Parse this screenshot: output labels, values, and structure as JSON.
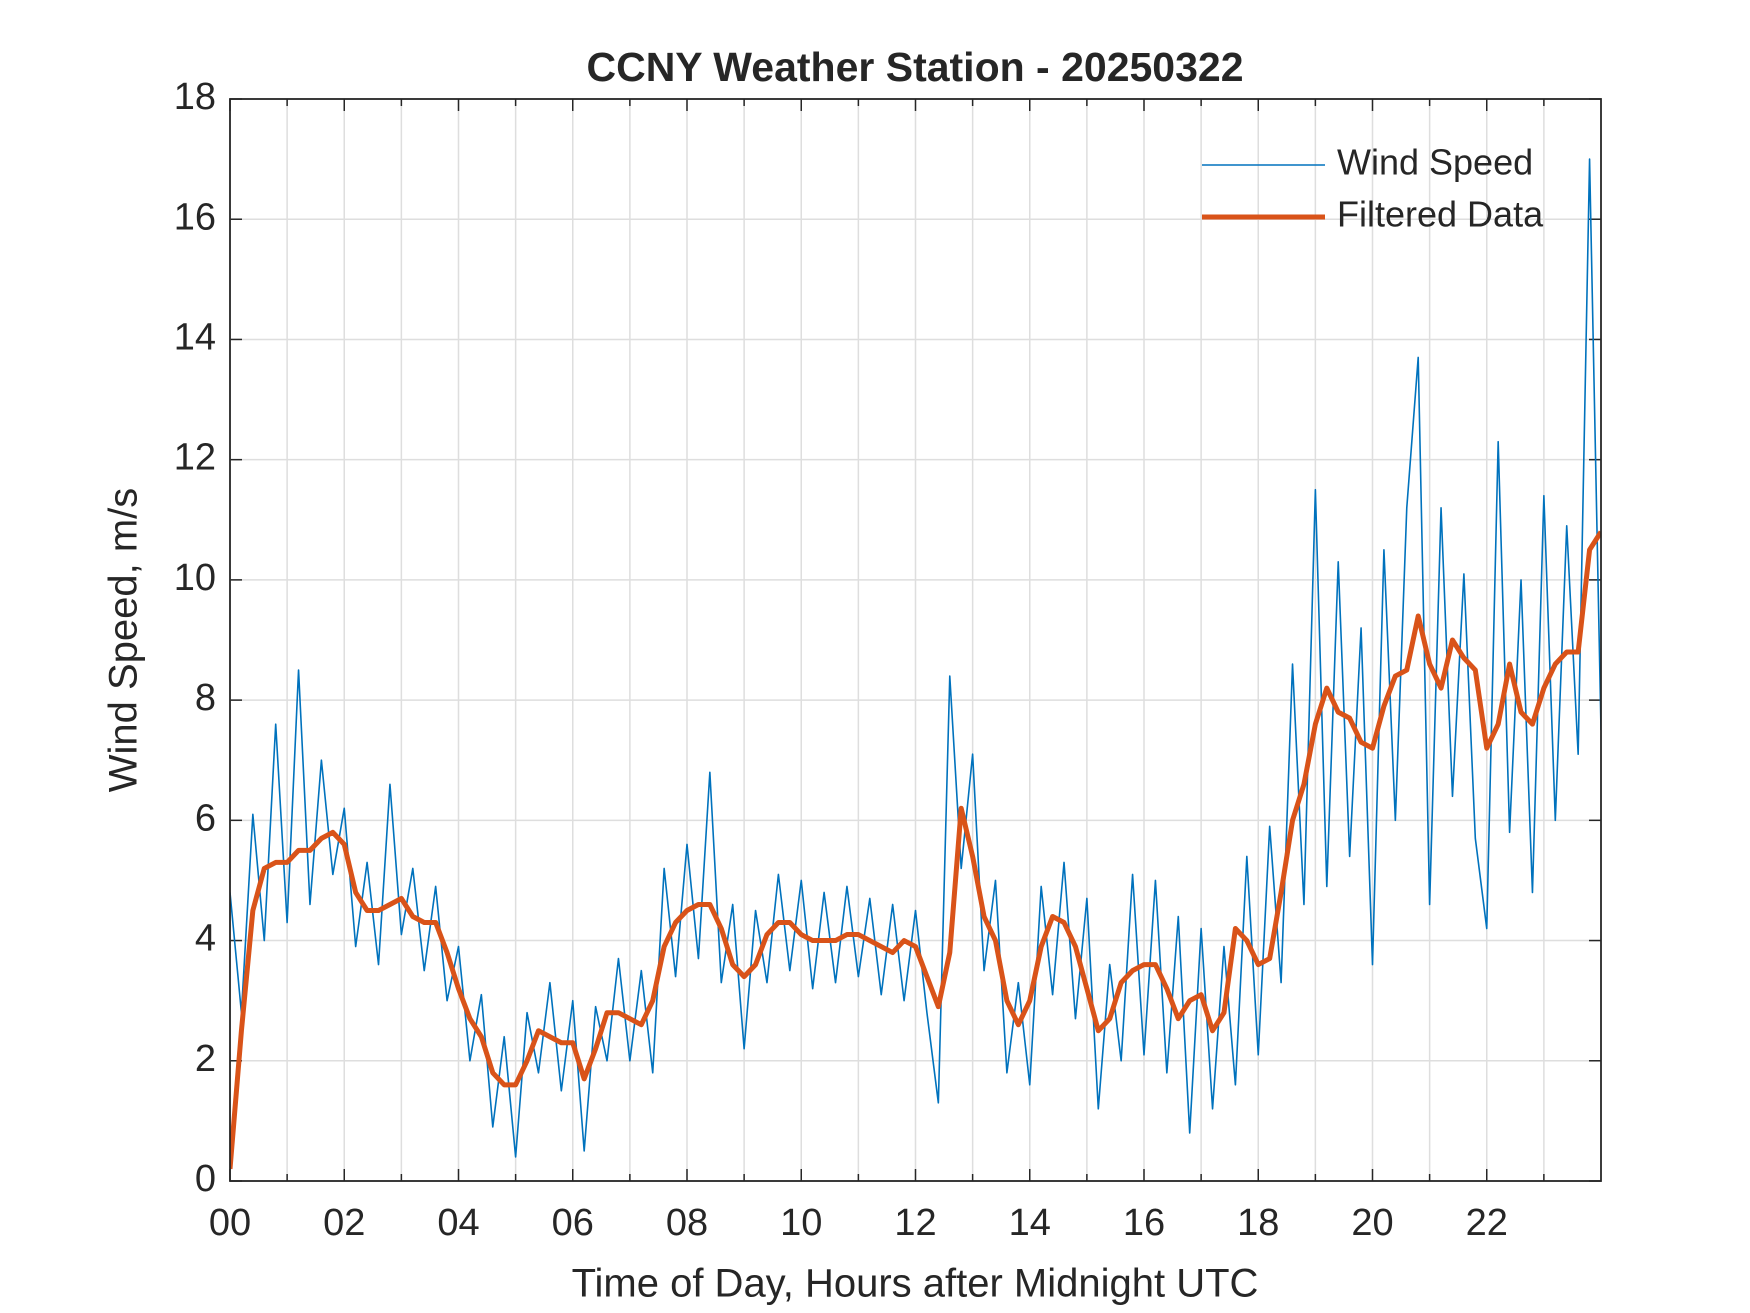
{
  "chart_data": {
    "type": "line",
    "title": "CCNY Weather Station - 20250322",
    "x_label": "Time of Day, Hours after Midnight UTC",
    "y_label": "Wind Speed, m/s",
    "x": [
      0,
      0.2,
      0.4,
      0.6,
      0.8,
      1,
      1.2,
      1.4,
      1.6,
      1.8,
      2,
      2.2,
      2.4,
      2.6,
      2.8,
      3,
      3.2,
      3.4,
      3.6,
      3.8,
      4,
      4.2,
      4.4,
      4.6,
      4.8,
      5,
      5.2,
      5.4,
      5.6,
      5.8,
      6,
      6.2,
      6.4,
      6.6,
      6.8,
      7,
      7.2,
      7.4,
      7.6,
      7.8,
      8,
      8.2,
      8.4,
      8.6,
      8.8,
      9,
      9.2,
      9.4,
      9.6,
      9.8,
      10,
      10.2,
      10.4,
      10.6,
      10.8,
      11,
      11.2,
      11.4,
      11.6,
      11.8,
      12,
      12.2,
      12.4,
      12.6,
      12.8,
      13,
      13.2,
      13.4,
      13.6,
      13.8,
      14,
      14.2,
      14.4,
      14.6,
      14.8,
      15,
      15.2,
      15.4,
      15.6,
      15.8,
      16,
      16.2,
      16.4,
      16.6,
      16.8,
      17,
      17.2,
      17.4,
      17.6,
      17.8,
      18,
      18.2,
      18.4,
      18.6,
      18.8,
      19,
      19.2,
      19.4,
      19.6,
      19.8,
      20,
      20.2,
      20.4,
      20.6,
      20.8,
      21,
      21.2,
      21.4,
      21.6,
      21.8,
      22,
      22.2,
      22.4,
      22.6,
      22.8,
      23,
      23.2,
      23.4,
      23.6,
      23.8,
      24
    ],
    "series": [
      {
        "name": "Wind Speed",
        "color": "#0072BD",
        "width": 1.6,
        "values": [
          4.8,
          2.8,
          6.1,
          4.0,
          7.6,
          4.3,
          8.5,
          4.6,
          7.0,
          5.1,
          6.2,
          3.9,
          5.3,
          3.6,
          6.6,
          4.1,
          5.2,
          3.5,
          4.9,
          3.0,
          3.9,
          2.0,
          3.1,
          0.9,
          2.4,
          0.4,
          2.8,
          1.8,
          3.3,
          1.5,
          3.0,
          0.5,
          2.9,
          2.0,
          3.7,
          2.0,
          3.5,
          1.8,
          5.2,
          3.4,
          5.6,
          3.7,
          6.8,
          3.3,
          4.6,
          2.2,
          4.5,
          3.3,
          5.1,
          3.5,
          5.0,
          3.2,
          4.8,
          3.3,
          4.9,
          3.4,
          4.7,
          3.1,
          4.6,
          3.0,
          4.5,
          2.8,
          1.3,
          8.4,
          5.2,
          7.1,
          3.5,
          5.0,
          1.8,
          3.3,
          1.6,
          4.9,
          3.1,
          5.3,
          2.7,
          4.7,
          1.2,
          3.6,
          2.0,
          5.1,
          2.1,
          5.0,
          1.8,
          4.4,
          0.8,
          4.2,
          1.2,
          3.9,
          1.6,
          5.4,
          2.1,
          5.9,
          3.3,
          8.6,
          4.6,
          11.5,
          4.9,
          10.3,
          5.4,
          9.2,
          3.6,
          10.5,
          6.0,
          11.2,
          13.7,
          4.6,
          11.2,
          6.4,
          10.1,
          5.7,
          4.2,
          12.3,
          5.8,
          10.0,
          4.8,
          11.4,
          6.0,
          10.9,
          7.1,
          17.0,
          7.5
        ]
      },
      {
        "name": "Filtered Data",
        "color": "#D95319",
        "width": 5,
        "values": [
          0.2,
          2.5,
          4.5,
          5.2,
          5.3,
          5.3,
          5.5,
          5.5,
          5.7,
          5.8,
          5.6,
          4.8,
          4.5,
          4.5,
          4.6,
          4.7,
          4.4,
          4.3,
          4.3,
          3.8,
          3.2,
          2.7,
          2.4,
          1.8,
          1.6,
          1.6,
          2.0,
          2.5,
          2.4,
          2.3,
          2.3,
          1.7,
          2.2,
          2.8,
          2.8,
          2.7,
          2.6,
          3.0,
          3.9,
          4.3,
          4.5,
          4.6,
          4.6,
          4.2,
          3.6,
          3.4,
          3.6,
          4.1,
          4.3,
          4.3,
          4.1,
          4.0,
          4.0,
          4.0,
          4.1,
          4.1,
          4.0,
          3.9,
          3.8,
          4.0,
          3.9,
          3.4,
          2.9,
          3.8,
          6.2,
          5.4,
          4.4,
          4.0,
          3.0,
          2.6,
          3.0,
          3.9,
          4.4,
          4.3,
          3.9,
          3.2,
          2.5,
          2.7,
          3.3,
          3.5,
          3.6,
          3.6,
          3.2,
          2.7,
          3.0,
          3.1,
          2.5,
          2.8,
          4.2,
          4.0,
          3.6,
          3.7,
          4.8,
          6.0,
          6.6,
          7.6,
          8.2,
          7.8,
          7.7,
          7.3,
          7.2,
          7.9,
          8.4,
          8.5,
          9.4,
          8.6,
          8.2,
          9.0,
          8.7,
          8.5,
          7.2,
          7.6,
          8.6,
          7.8,
          7.6,
          8.2,
          8.6,
          8.8,
          8.8,
          10.5,
          10.8
        ]
      }
    ],
    "xlim": [
      0,
      24
    ],
    "xticks": [
      {
        "value": 0,
        "label": "00"
      },
      {
        "value": 2,
        "label": "02"
      },
      {
        "value": 4,
        "label": "04"
      },
      {
        "value": 6,
        "label": "06"
      },
      {
        "value": 8,
        "label": "08"
      },
      {
        "value": 10,
        "label": "10"
      },
      {
        "value": 12,
        "label": "12"
      },
      {
        "value": 14,
        "label": "14"
      },
      {
        "value": 16,
        "label": "16"
      },
      {
        "value": 18,
        "label": "18"
      },
      {
        "value": 20,
        "label": "20"
      },
      {
        "value": 22,
        "label": "22"
      }
    ],
    "xminorticks": [
      1,
      3,
      5,
      7,
      9,
      11,
      13,
      15,
      17,
      19,
      21,
      23
    ],
    "ylim": [
      0,
      18
    ],
    "yticks": [
      0,
      2,
      4,
      6,
      8,
      10,
      12,
      14,
      16,
      18
    ],
    "grid": true,
    "legend": "upper right"
  }
}
